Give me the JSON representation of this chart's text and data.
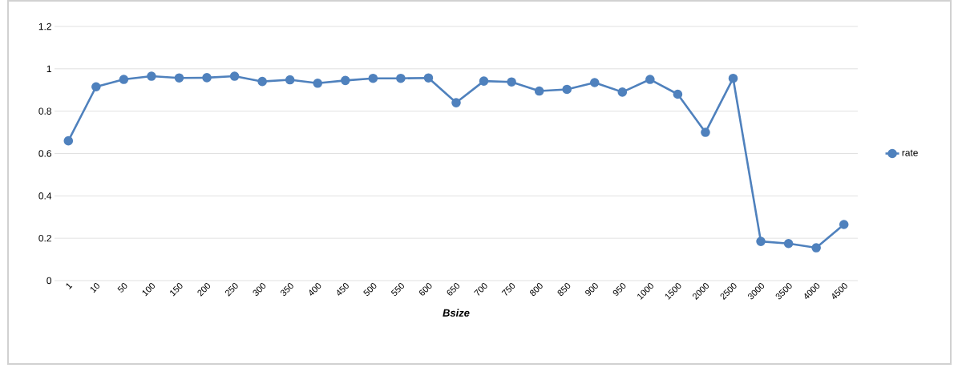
{
  "chart_data": {
    "type": "line",
    "xlabel": "Bsize",
    "categories": [
      "1",
      "10",
      "50",
      "100",
      "150",
      "200",
      "250",
      "300",
      "350",
      "400",
      "450",
      "500",
      "550",
      "600",
      "650",
      "700",
      "750",
      "800",
      "850",
      "900",
      "950",
      "1000",
      "1500",
      "2000",
      "2500",
      "3000",
      "3500",
      "4000",
      "4500"
    ],
    "series": [
      {
        "name": "rate",
        "color": "#4f81bd",
        "values": [
          0.66,
          0.915,
          0.95,
          0.965,
          0.957,
          0.958,
          0.965,
          0.94,
          0.948,
          0.932,
          0.945,
          0.955,
          0.955,
          0.957,
          0.84,
          0.942,
          0.938,
          0.895,
          0.903,
          0.935,
          0.89,
          0.95,
          0.88,
          0.7,
          0.955,
          0.185,
          0.175,
          0.155,
          0.265
        ]
      }
    ],
    "ylim": [
      0,
      1.2
    ],
    "yticks": [
      0,
      0.2,
      0.4,
      0.6,
      0.8,
      1,
      1.2
    ],
    "grid": "y",
    "legend": "right",
    "marker": "circle",
    "line_style": "solid"
  }
}
